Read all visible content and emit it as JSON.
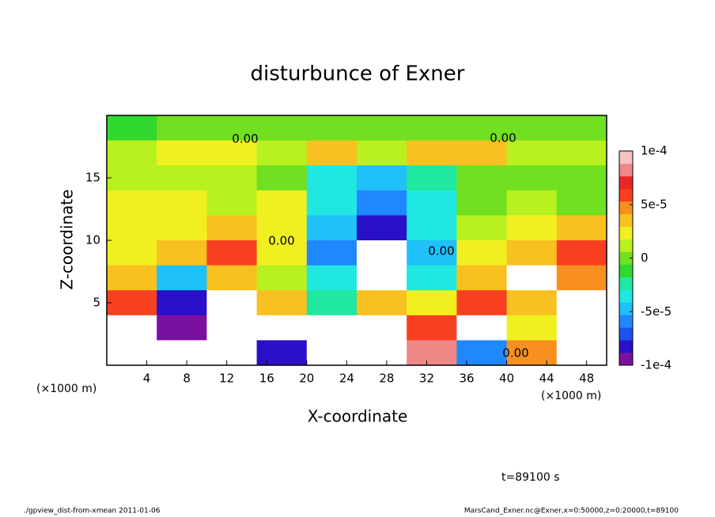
{
  "chart_data": {
    "type": "contour",
    "title": "disturbunce of Exner",
    "xlabel": "X-coordinate",
    "ylabel": "Z-coordinate",
    "unit_label": "(×1000 m)",
    "x": [
      2.5,
      7.5,
      12.5,
      17.5,
      22.5,
      27.5,
      32.5,
      37.5,
      42.5,
      47.5
    ],
    "y": [
      19,
      17,
      15,
      13,
      11,
      9,
      7,
      5,
      3,
      1
    ],
    "z": [
      [
        -1e-05,
        0,
        0,
        -5e-06,
        0,
        0,
        0,
        0,
        0,
        0
      ],
      [
        1e-05,
        2e-05,
        2e-05,
        1e-05,
        3e-05,
        1e-05,
        3e-05,
        3e-05,
        1e-05,
        1e-05
      ],
      [
        1e-05,
        1e-05,
        1e-05,
        0,
        -3e-05,
        -5e-05,
        -2e-05,
        0,
        0,
        0
      ],
      [
        2e-05,
        2e-05,
        1e-05,
        2e-05,
        -4e-05,
        -6e-05,
        -3e-05,
        0,
        1e-05,
        0
      ],
      [
        2e-05,
        2e-05,
        4e-05,
        2e-05,
        -5e-05,
        -8e-05,
        -4e-05,
        1e-05,
        2e-05,
        3e-05
      ],
      [
        2e-05,
        3e-05,
        6e-05,
        2e-05,
        -6e-05,
        -0.00012,
        -5e-05,
        2e-05,
        3e-05,
        6e-05
      ],
      [
        4e-05,
        -5e-05,
        4e-05,
        1e-05,
        -4e-05,
        -0.00012,
        -3e-05,
        4e-05,
        0.00012,
        5e-05
      ],
      [
        6e-05,
        -8e-05,
        -0.00012,
        3e-05,
        -2e-05,
        4e-05,
        2e-05,
        6e-05,
        3e-05,
        -0.00012
      ],
      [
        -0.00012,
        -9e-05,
        -0.00012,
        -0.00012,
        -0.00012,
        -0.00012,
        6e-05,
        -0.00012,
        2e-05,
        -0.00012
      ],
      [
        -0.00012,
        -0.00012,
        -0.00012,
        -8e-05,
        -0.00012,
        -0.00012,
        8e-05,
        -6e-05,
        5e-05,
        -0.00012
      ]
    ],
    "xlim": [
      0,
      50
    ],
    "ylim": [
      0,
      20
    ],
    "xticks": [
      4,
      8,
      12,
      16,
      20,
      24,
      28,
      32,
      36,
      40,
      44,
      48
    ],
    "yticks": [
      5,
      10,
      15
    ],
    "clim": [
      -0.0001,
      0.0001
    ],
    "colorbar_ticks": [
      {
        "value": 0.0001,
        "label": "1e-4"
      },
      {
        "value": 5e-05,
        "label": "5e-5"
      },
      {
        "value": 0,
        "label": "0"
      },
      {
        "value": -5e-05,
        "label": "-5e-5"
      },
      {
        "value": -0.0001,
        "label": "-1e-4"
      }
    ],
    "colors": [
      "#7a10a0",
      "#2a10c8",
      "#2050f0",
      "#2088ff",
      "#20c0f8",
      "#20e8e0",
      "#20e8a0",
      "#30d830",
      "#70e020",
      "#b8f020",
      "#f0f020",
      "#f8c020",
      "#f89020",
      "#f84020",
      "#e82828",
      "#f08888",
      "#f8c0c0"
    ],
    "contour_labels": [
      "0.00",
      "0.00",
      "0.00",
      "0.00",
      "0.00"
    ],
    "annotation": "t=89100 s"
  },
  "footer": {
    "left": "./gpview_dist-from-xmean  2011-01-06",
    "right": "MarsCand_Exner.nc@Exner,x=0:50000,z=0:20000,t=89100"
  }
}
